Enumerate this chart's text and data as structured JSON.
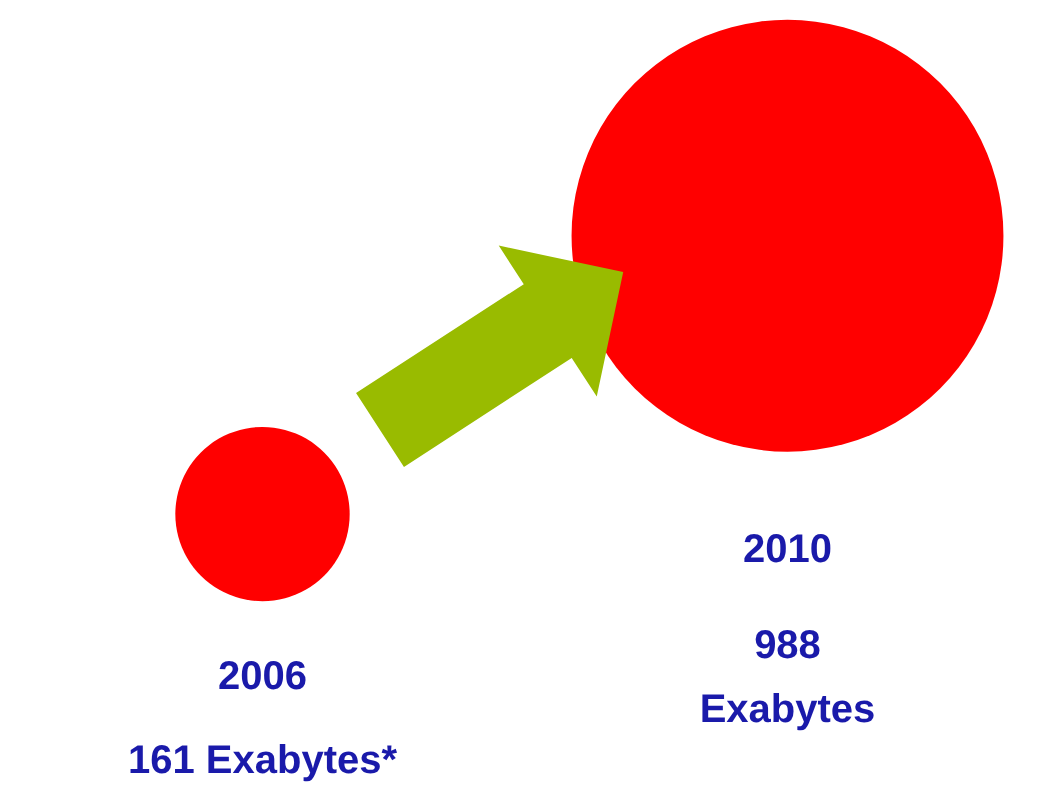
{
  "chart_data": {
    "type": "other",
    "categories": [
      "2006",
      "2010"
    ],
    "values": [
      161,
      988
    ],
    "value_labels": [
      "161 Exabytes*",
      "988 Exabytes"
    ],
    "color": "#ff0000"
  }
}
